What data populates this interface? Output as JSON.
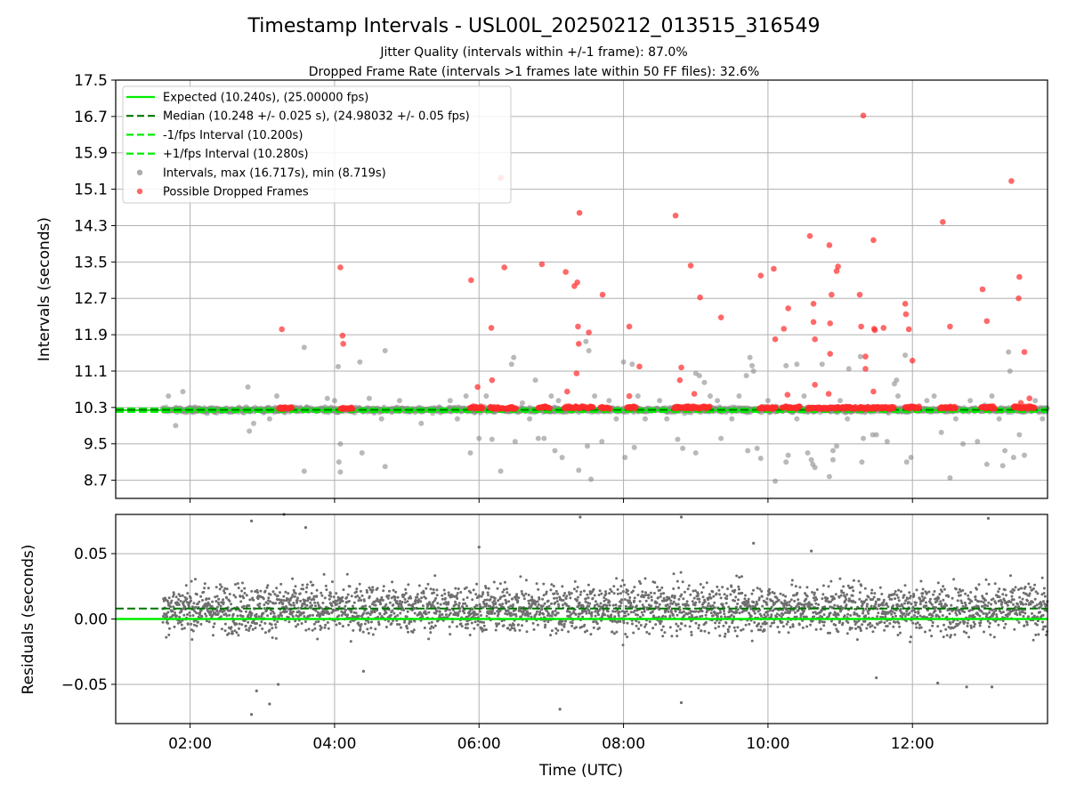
{
  "figure": {
    "title": "Timestamp Intervals - USL00L_20250212_013515_316549",
    "subtitle_1": "Jitter Quality (intervals within +/-1 frame): 87.0%",
    "subtitle_2": "Dropped Frame Rate (intervals >1 frames late within 50 FF files): 32.6%"
  },
  "colors": {
    "expected": "#00ee00",
    "median": "#007700",
    "interval_points": "#8a8a8a",
    "dropped_points": "#ff2a2a",
    "residual_points": "#6e6e6e",
    "grid": "#b0b0b0"
  },
  "chart_data": [
    {
      "type": "scatter",
      "panel": "intervals",
      "ylabel": "Intervals (seconds)",
      "xlabel": "",
      "x_unit": "hours (UTC)",
      "xlim": [
        0.97,
        13.87
      ],
      "ylim": [
        8.3,
        17.5
      ],
      "yticks": [
        8.7,
        9.5,
        10.3,
        11.1,
        11.9,
        12.7,
        13.5,
        14.3,
        15.1,
        15.9,
        16.7,
        17.5
      ],
      "ytick_labels": [
        "8.7",
        "9.5",
        "10.3",
        "11.1",
        "11.9",
        "12.7",
        "13.5",
        "14.3",
        "15.1",
        "15.9",
        "16.7",
        "17.5"
      ],
      "grid": true,
      "legend_position": "top-left",
      "legend": [
        {
          "label": "Expected (10.240s), (25.00000 fps)",
          "style": "solid",
          "color": "#00ee00"
        },
        {
          "label": "Median (10.248 +/- 0.025 s), (24.98032 +/- 0.05 fps)",
          "style": "dashed",
          "color": "#007700"
        },
        {
          "label": "-1/fps Interval (10.200s)",
          "style": "dashed",
          "color": "#00ee00"
        },
        {
          "label": "+1/fps Interval (10.280s)",
          "style": "dashed",
          "color": "#00ee00"
        },
        {
          "label": "Intervals, max (16.717s), min (8.719s)",
          "style": "dot",
          "color": "#8a8a8a"
        },
        {
          "label": "Possible Dropped Frames",
          "style": "dot",
          "color": "#ff2a2a"
        }
      ],
      "lines": {
        "expected": 10.24,
        "median": 10.248,
        "minus_1fps": 10.2,
        "plus_1fps": 10.28
      },
      "dropped_frames": [
        [
          3.27,
          12.02
        ],
        [
          4.08,
          13.38
        ],
        [
          4.11,
          11.88
        ],
        [
          4.12,
          11.7
        ],
        [
          5.89,
          13.1
        ],
        [
          5.98,
          10.75
        ],
        [
          6.17,
          12.05
        ],
        [
          6.18,
          10.9
        ],
        [
          6.3,
          15.35
        ],
        [
          6.35,
          13.38
        ],
        [
          6.87,
          13.45
        ],
        [
          7.2,
          13.28
        ],
        [
          7.22,
          10.65
        ],
        [
          7.32,
          12.97
        ],
        [
          7.36,
          13.05
        ],
        [
          7.37,
          12.08
        ],
        [
          7.38,
          11.7
        ],
        [
          7.39,
          14.58
        ],
        [
          7.52,
          11.95
        ],
        [
          7.35,
          11.05
        ],
        [
          7.71,
          12.78
        ],
        [
          8.08,
          12.08
        ],
        [
          8.08,
          10.55
        ],
        [
          8.22,
          11.2
        ],
        [
          8.72,
          14.52
        ],
        [
          8.8,
          11.18
        ],
        [
          8.78,
          10.9
        ],
        [
          8.93,
          13.42
        ],
        [
          9.06,
          12.72
        ],
        [
          8.98,
          10.6
        ],
        [
          9.35,
          12.28
        ],
        [
          9.9,
          13.2
        ],
        [
          10.08,
          13.35
        ],
        [
          10.1,
          11.8
        ],
        [
          10.22,
          12.03
        ],
        [
          10.28,
          12.48
        ],
        [
          10.27,
          10.58
        ],
        [
          10.58,
          14.07
        ],
        [
          10.63,
          12.58
        ],
        [
          10.63,
          12.18
        ],
        [
          10.65,
          11.8
        ],
        [
          10.65,
          10.8
        ],
        [
          10.85,
          13.87
        ],
        [
          10.86,
          12.15
        ],
        [
          10.88,
          12.78
        ],
        [
          10.86,
          11.48
        ],
        [
          10.84,
          10.6
        ],
        [
          10.95,
          13.3
        ],
        [
          10.97,
          13.4
        ],
        [
          11.27,
          12.78
        ],
        [
          11.29,
          12.08
        ],
        [
          11.32,
          16.72
        ],
        [
          11.35,
          11.42
        ],
        [
          11.35,
          11.15
        ],
        [
          11.46,
          13.98
        ],
        [
          11.47,
          12.03
        ],
        [
          11.48,
          12.0
        ],
        [
          11.6,
          12.05
        ],
        [
          11.46,
          10.65
        ],
        [
          11.9,
          12.58
        ],
        [
          11.91,
          12.35
        ],
        [
          11.95,
          12.02
        ],
        [
          12.0,
          11.33
        ],
        [
          12.42,
          14.38
        ],
        [
          12.52,
          12.08
        ],
        [
          12.97,
          12.9
        ],
        [
          13.03,
          12.2
        ],
        [
          13.37,
          15.28
        ],
        [
          13.48,
          13.17
        ],
        [
          13.47,
          12.7
        ],
        [
          13.55,
          11.52
        ],
        [
          13.5,
          10.4
        ],
        [
          13.62,
          10.5
        ]
      ],
      "dropped_band": [
        {
          "x_from": 3.23,
          "x_to": 3.42,
          "y": 10.28
        },
        {
          "x_from": 4.08,
          "x_to": 4.25,
          "y": 10.28
        },
        {
          "x_from": 5.87,
          "x_to": 6.05,
          "y": 10.3
        },
        {
          "x_from": 6.15,
          "x_to": 6.52,
          "y": 10.29
        },
        {
          "x_from": 6.82,
          "x_to": 6.98,
          "y": 10.3
        },
        {
          "x_from": 7.18,
          "x_to": 7.45,
          "y": 10.3
        },
        {
          "x_from": 7.48,
          "x_to": 7.58,
          "y": 10.3
        },
        {
          "x_from": 7.68,
          "x_to": 7.82,
          "y": 10.29
        },
        {
          "x_from": 8.05,
          "x_to": 8.18,
          "y": 10.3
        },
        {
          "x_from": 8.7,
          "x_to": 9.2,
          "y": 10.3
        },
        {
          "x_from": 9.88,
          "x_to": 10.12,
          "y": 10.29
        },
        {
          "x_from": 10.2,
          "x_to": 10.45,
          "y": 10.3
        },
        {
          "x_from": 10.55,
          "x_to": 11.22,
          "y": 10.29
        },
        {
          "x_from": 11.25,
          "x_to": 11.75,
          "y": 10.29
        },
        {
          "x_from": 11.9,
          "x_to": 12.1,
          "y": 10.3
        },
        {
          "x_from": 12.38,
          "x_to": 12.6,
          "y": 10.3
        },
        {
          "x_from": 12.95,
          "x_to": 13.15,
          "y": 10.3
        },
        {
          "x_from": 13.4,
          "x_to": 13.7,
          "y": 10.3
        }
      ],
      "interval_points": [
        [
          3.58,
          11.62
        ],
        [
          3.58,
          8.9
        ],
        [
          4.05,
          11.2
        ],
        [
          4.08,
          9.5
        ],
        [
          4.06,
          9.1
        ],
        [
          4.08,
          8.88
        ],
        [
          4.35,
          11.3
        ],
        [
          4.38,
          9.3
        ],
        [
          4.7,
          11.55
        ],
        [
          4.7,
          9.0
        ],
        [
          5.88,
          9.3
        ],
        [
          6.0,
          9.62
        ],
        [
          6.18,
          9.6
        ],
        [
          6.3,
          8.9
        ],
        [
          6.45,
          11.25
        ],
        [
          6.48,
          11.4
        ],
        [
          6.5,
          9.55
        ],
        [
          6.78,
          10.9
        ],
        [
          6.82,
          9.62
        ],
        [
          6.9,
          9.62
        ],
        [
          7.05,
          9.35
        ],
        [
          7.15,
          9.2
        ],
        [
          7.38,
          8.92
        ],
        [
          7.48,
          11.75
        ],
        [
          7.52,
          11.55
        ],
        [
          7.5,
          9.45
        ],
        [
          7.55,
          8.72
        ],
        [
          7.7,
          9.55
        ],
        [
          8.0,
          11.3
        ],
        [
          8.02,
          9.2
        ],
        [
          8.12,
          11.25
        ],
        [
          8.15,
          9.42
        ],
        [
          8.75,
          9.6
        ],
        [
          8.82,
          9.4
        ],
        [
          9.0,
          11.05
        ],
        [
          9.0,
          9.3
        ],
        [
          9.05,
          11.0
        ],
        [
          9.12,
          10.85
        ],
        [
          9.35,
          9.62
        ],
        [
          9.7,
          11.0
        ],
        [
          9.72,
          9.35
        ],
        [
          9.75,
          11.4
        ],
        [
          9.78,
          11.22
        ],
        [
          9.8,
          11.1
        ],
        [
          9.85,
          9.4
        ],
        [
          9.9,
          9.18
        ],
        [
          10.1,
          8.68
        ],
        [
          10.25,
          9.1
        ],
        [
          10.28,
          9.25
        ],
        [
          10.25,
          11.22
        ],
        [
          10.4,
          11.25
        ],
        [
          10.55,
          9.3
        ],
        [
          10.6,
          9.15
        ],
        [
          10.62,
          9.05
        ],
        [
          10.65,
          8.98
        ],
        [
          10.75,
          11.25
        ],
        [
          10.85,
          8.78
        ],
        [
          10.9,
          9.35
        ],
        [
          10.9,
          9.15
        ],
        [
          10.95,
          9.45
        ],
        [
          11.12,
          11.15
        ],
        [
          11.28,
          11.42
        ],
        [
          11.3,
          9.1
        ],
        [
          11.32,
          9.62
        ],
        [
          11.45,
          9.7
        ],
        [
          11.5,
          9.7
        ],
        [
          11.65,
          9.55
        ],
        [
          11.75,
          10.82
        ],
        [
          11.78,
          10.9
        ],
        [
          11.9,
          11.45
        ],
        [
          11.92,
          9.1
        ],
        [
          11.98,
          9.2
        ],
        [
          12.4,
          9.75
        ],
        [
          12.52,
          8.75
        ],
        [
          12.7,
          9.5
        ],
        [
          12.9,
          9.55
        ],
        [
          13.0,
          10.35
        ],
        [
          13.03,
          9.05
        ],
        [
          13.25,
          9.02
        ],
        [
          13.28,
          9.35
        ],
        [
          13.33,
          11.52
        ],
        [
          13.35,
          11.1
        ],
        [
          13.4,
          9.2
        ],
        [
          13.48,
          9.7
        ],
        [
          13.55,
          9.25
        ],
        [
          1.7,
          10.55
        ],
        [
          1.8,
          9.9
        ],
        [
          1.9,
          10.65
        ],
        [
          2.8,
          10.75
        ],
        [
          2.82,
          9.78
        ],
        [
          2.88,
          9.95
        ],
        [
          3.1,
          10.05
        ],
        [
          3.2,
          10.55
        ],
        [
          3.9,
          10.5
        ],
        [
          4.0,
          10.45
        ],
        [
          4.48,
          10.5
        ],
        [
          4.65,
          10.05
        ],
        [
          4.9,
          10.45
        ],
        [
          5.2,
          9.95
        ],
        [
          5.6,
          10.45
        ],
        [
          5.7,
          10.05
        ],
        [
          5.82,
          10.55
        ],
        [
          6.1,
          10.55
        ],
        [
          6.6,
          10.4
        ],
        [
          6.7,
          10.05
        ],
        [
          7.0,
          10.55
        ],
        [
          7.1,
          10.45
        ],
        [
          7.6,
          10.55
        ],
        [
          7.8,
          10.45
        ],
        [
          7.9,
          10.05
        ],
        [
          8.2,
          10.55
        ],
        [
          8.3,
          10.05
        ],
        [
          8.5,
          10.45
        ],
        [
          8.6,
          10.05
        ],
        [
          9.2,
          10.55
        ],
        [
          9.3,
          10.45
        ],
        [
          9.5,
          10.05
        ],
        [
          9.6,
          10.55
        ],
        [
          10.0,
          10.45
        ],
        [
          10.4,
          10.05
        ],
        [
          10.5,
          10.55
        ],
        [
          11.0,
          10.45
        ],
        [
          11.1,
          10.05
        ],
        [
          11.8,
          10.55
        ],
        [
          12.2,
          10.45
        ],
        [
          12.3,
          10.55
        ],
        [
          12.6,
          10.05
        ],
        [
          12.8,
          10.45
        ],
        [
          13.1,
          10.55
        ],
        [
          13.2,
          10.05
        ],
        [
          13.7,
          10.45
        ],
        [
          13.8,
          10.05
        ]
      ],
      "interval_band": {
        "x_from": 1.62,
        "x_to": 13.87,
        "y_center": 10.248,
        "y_spread": 0.09
      }
    },
    {
      "type": "scatter",
      "panel": "residuals",
      "ylabel": "Residuals (seconds)",
      "xlabel": "Time (UTC)",
      "x_unit": "hours (UTC)",
      "xlim": [
        0.97,
        13.87
      ],
      "ylim": [
        -0.08,
        0.08
      ],
      "yticks": [
        0.05,
        0.0,
        -0.05
      ],
      "ytick_labels": [
        "0.05",
        "0.00",
        "−0.05"
      ],
      "xticks": [
        2,
        4,
        6,
        8,
        10,
        12
      ],
      "xtick_labels": [
        "02:00",
        "04:00",
        "06:00",
        "08:00",
        "10:00",
        "12:00"
      ],
      "grid": true,
      "lines": {
        "expected": 0.0,
        "median": 0.008
      },
      "residual_band": {
        "x_from": 1.62,
        "x_to": 13.87,
        "y_center": 0.008,
        "y_spread": 0.02
      },
      "residual_outliers": [
        [
          2.85,
          0.075
        ],
        [
          2.85,
          -0.073
        ],
        [
          2.92,
          -0.055
        ],
        [
          3.1,
          -0.065
        ],
        [
          3.22,
          -0.05
        ],
        [
          3.6,
          0.07
        ],
        [
          7.12,
          -0.069
        ],
        [
          7.4,
          0.078
        ],
        [
          8.8,
          0.078
        ],
        [
          8.8,
          -0.064
        ],
        [
          9.8,
          0.058
        ],
        [
          12.35,
          -0.049
        ],
        [
          12.75,
          -0.052
        ],
        [
          13.05,
          0.077
        ],
        [
          13.1,
          -0.052
        ],
        [
          3.3,
          0.08
        ],
        [
          4.4,
          -0.04
        ],
        [
          6.0,
          0.055
        ],
        [
          10.6,
          0.052
        ],
        [
          11.5,
          -0.045
        ]
      ]
    }
  ]
}
